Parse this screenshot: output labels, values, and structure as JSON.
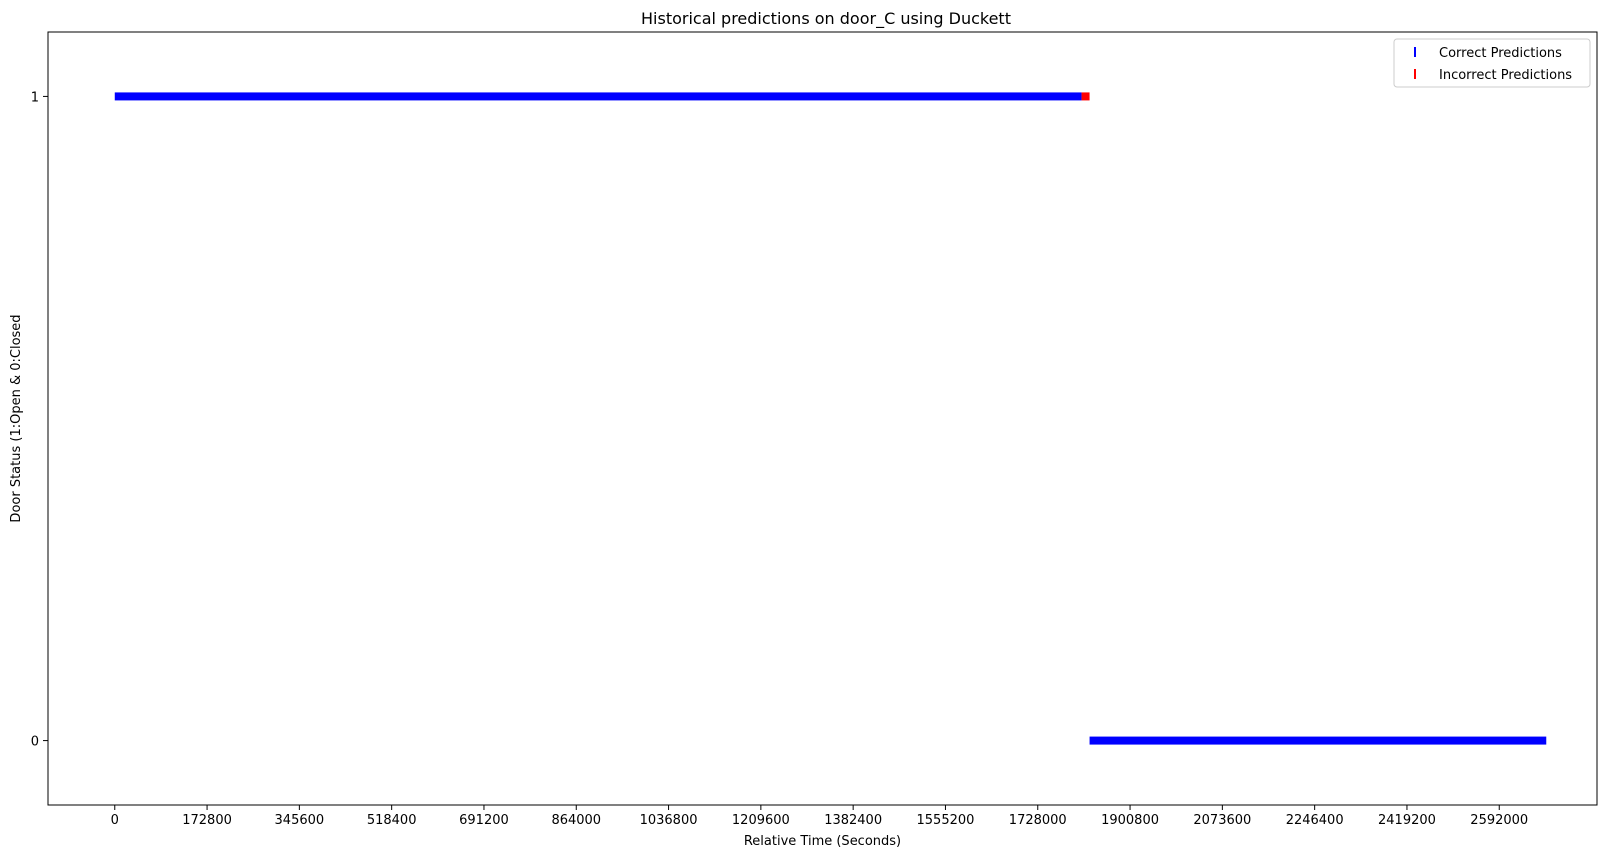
{
  "chart_data": {
    "type": "scatter",
    "title": "Historical predictions on door_C using Duckett",
    "xlabel": "Relative Time (Seconds)",
    "ylabel": "Door Status (1:Open & 0:Closed",
    "xlim": [
      -125000,
      2775000
    ],
    "ylim": [
      -0.1,
      1.1
    ],
    "xticks": [
      0,
      172800,
      345600,
      518400,
      691200,
      864000,
      1036800,
      1209600,
      1382400,
      1555200,
      1728000,
      1900800,
      2073600,
      2246400,
      2419200,
      2592000
    ],
    "yticks": [
      0,
      1
    ],
    "grid": false,
    "legend": {
      "position": "top-right",
      "entries": [
        {
          "label": "Correct Predictions",
          "color": "#0000ff"
        },
        {
          "label": "Incorrect Predictions",
          "color": "#ff0000"
        }
      ]
    },
    "series": [
      {
        "name": "Correct Predictions",
        "color": "#0000ff",
        "marker": "|",
        "segments": [
          {
            "x_start": 0,
            "x_end": 1810000,
            "y": 1
          },
          {
            "x_start": 1825000,
            "x_end": 2680000,
            "y": 0
          }
        ]
      },
      {
        "name": "Incorrect Predictions",
        "color": "#ff0000",
        "marker": "|",
        "segments": [
          {
            "x_start": 1810000,
            "x_end": 1825000,
            "y": 1
          }
        ]
      }
    ]
  }
}
